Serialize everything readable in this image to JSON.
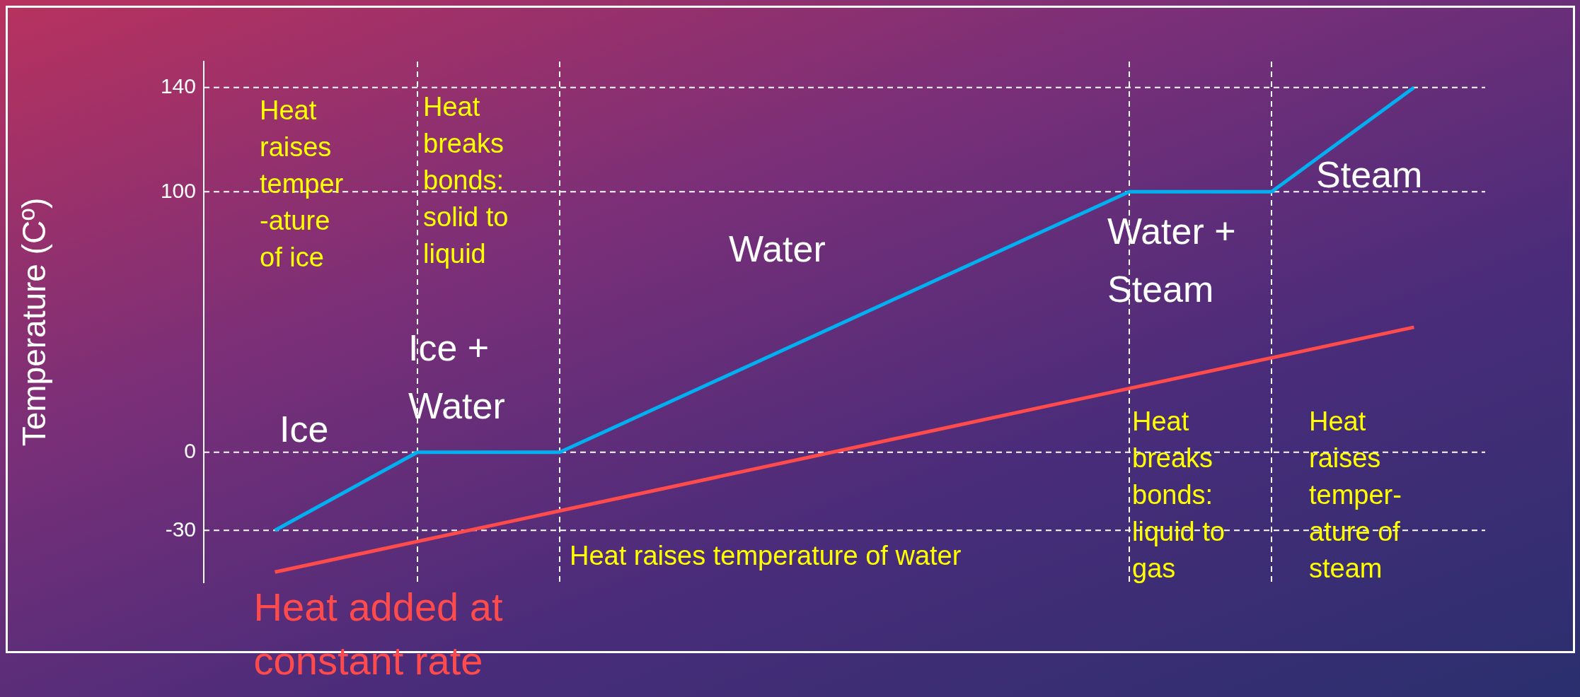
{
  "chart_data": {
    "type": "line",
    "ylabel": "Temperature (Cº)",
    "categories": [
      null,
      null,
      null,
      null,
      null,
      null,
      null,
      null,
      null
    ],
    "ylim": [
      -50,
      150
    ],
    "yticks": [
      -30,
      0,
      100,
      140
    ],
    "tick_labels": "y",
    "grid": "x",
    "legend": false,
    "marker": "none",
    "line_style": "solid",
    "series": [
      {
        "color": "#00b0f0",
        "values": [
          -30,
          0,
          0,
          null,
          null,
          null,
          100,
          100,
          140
        ]
      },
      {
        "name": "Heat added at constant rate",
        "color": "#ff4b4b",
        "values": [
          -46,
          null,
          null,
          null,
          null,
          null,
          null,
          null,
          48
        ]
      }
    ],
    "ref_lines": [
      {
        "axis": "y",
        "value": -30,
        "color": "#ffffff",
        "line_style": "dashed"
      },
      {
        "axis": "y",
        "value": 0,
        "color": "#ffffff",
        "line_style": "dashed"
      },
      {
        "axis": "y",
        "value": 100,
        "color": "#ffffff",
        "line_style": "dashed"
      },
      {
        "axis": "y",
        "value": 140,
        "color": "#ffffff",
        "line_style": "dashed"
      }
    ],
    "annotations": [
      "Heat\nraises\ntemper\n-ature\nof ice",
      "Heat\nbreaks\nbonds:\nsolid to\nliquid",
      "Heat raises temperature of water",
      "Heat\nbreaks\nbonds:\nliquid to\ngas",
      "Heat\nraises\ntemper-\nature of\nsteam",
      "Ice",
      "Ice +\nWater",
      "Water",
      "Water +\nSteam",
      "Steam"
    ]
  }
}
